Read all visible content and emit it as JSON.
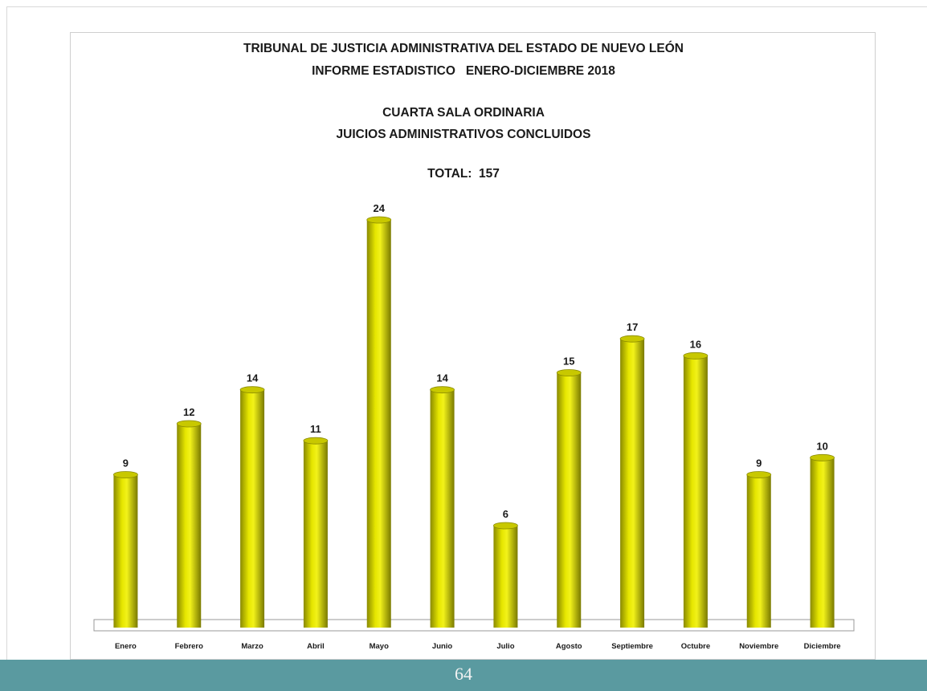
{
  "chart_data": {
    "type": "bar",
    "title": "TRIBUNAL DE JUSTICIA ADMINISTRATIVA DEL ESTADO DE NUEVO LEÓN",
    "title_line2": "INFORME ESTADISTICO   ENERO-DICIEMBRE 2018",
    "subtitle": "CUARTA SALA ORDINARIA",
    "subtitle_line2": "JUICIOS ADMINISTRATIVOS CONCLUIDOS",
    "total_label": "TOTAL:  157",
    "categories": [
      "Enero",
      "Febrero",
      "Marzo",
      "Abril",
      "Mayo",
      "Junio",
      "Julio",
      "Agosto",
      "Septiembre",
      "Octubre",
      "Noviembre",
      "Diciembre"
    ],
    "values": [
      9,
      12,
      14,
      11,
      24,
      14,
      6,
      15,
      17,
      16,
      9,
      10
    ],
    "ylim": [
      0,
      24
    ],
    "bar_color": "#d4d400",
    "grid": false,
    "legend": "none"
  },
  "footer": {
    "page_number": "64",
    "color": "#5a9aa0"
  }
}
